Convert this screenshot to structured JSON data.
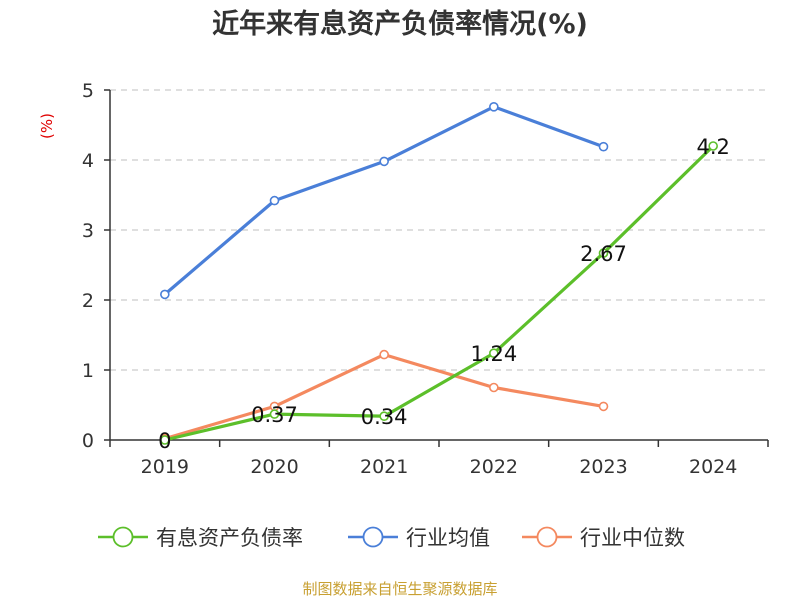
{
  "chart_data": {
    "type": "line",
    "title": "近年来有息资产负债率情况(%)",
    "ylabel": "(%)",
    "categories": [
      "2019",
      "2020",
      "2021",
      "2022",
      "2023",
      "2024"
    ],
    "ylim": [
      0,
      5
    ],
    "yticks": [
      "0",
      "1",
      "2",
      "3",
      "4",
      "5"
    ],
    "grid": true,
    "legend_position": "bottom",
    "series": [
      {
        "name": "有息资产负债率",
        "color": "#5cbf2a",
        "values": [
          0,
          0.37,
          0.34,
          1.24,
          2.67,
          4.2
        ],
        "data_labels": [
          "0",
          "0.37",
          "0.34",
          "1.24",
          "2.67",
          "4.2"
        ]
      },
      {
        "name": "行业均值",
        "color": "#4a7fd8",
        "values": [
          2.08,
          3.42,
          3.98,
          4.76,
          4.19,
          null
        ]
      },
      {
        "name": "行业中位数",
        "color": "#f4895f",
        "values": [
          0.02,
          0.48,
          1.22,
          0.75,
          0.48,
          null
        ]
      }
    ]
  },
  "source_text": "制图数据来自恒生聚源数据库"
}
